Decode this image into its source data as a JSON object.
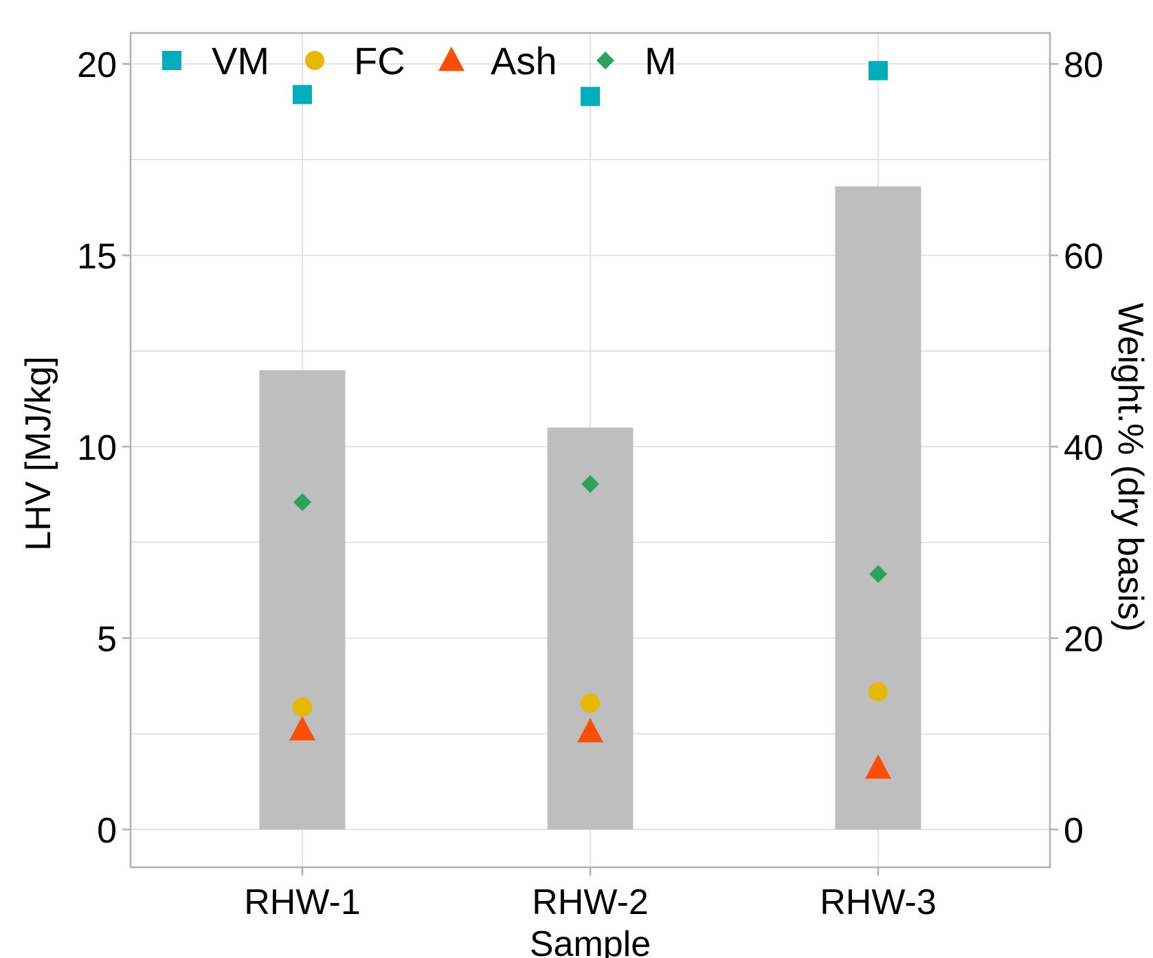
{
  "chart_data": {
    "type": "bar",
    "categories": [
      "RHW-1",
      "RHW-2",
      "RHW-3"
    ],
    "xlabel": "Sample",
    "ylabel": "LHV [MJ/kg]",
    "y2label": "Weight.% (dry basis)",
    "ylim": [
      0,
      20
    ],
    "y2lim": [
      0,
      80
    ],
    "yticks": [
      "0",
      "5",
      "10",
      "15",
      "20"
    ],
    "y2ticks": [
      "0",
      "20",
      "40",
      "60",
      "80"
    ],
    "grid": true,
    "legend_position": "top-left",
    "bar_series": {
      "axis": "left",
      "color": "#bebebe",
      "values": [
        12.0,
        10.5,
        16.8
      ]
    },
    "series": [
      {
        "name": "VM",
        "marker": "square",
        "color": "#00aebb",
        "axis": "right",
        "values": [
          76.8,
          76.6,
          79.3
        ]
      },
      {
        "name": "FC",
        "marker": "circle",
        "color": "#e7b800",
        "axis": "right",
        "values": [
          12.8,
          13.2,
          14.4
        ]
      },
      {
        "name": "Ash",
        "marker": "triangle",
        "color": "#fc4e07",
        "axis": "right",
        "values": [
          10.4,
          10.2,
          6.4
        ]
      },
      {
        "name": "M",
        "marker": "diamond",
        "color": "#2ca25f",
        "axis": "right",
        "values": [
          34.2,
          36.1,
          26.7
        ]
      }
    ]
  }
}
